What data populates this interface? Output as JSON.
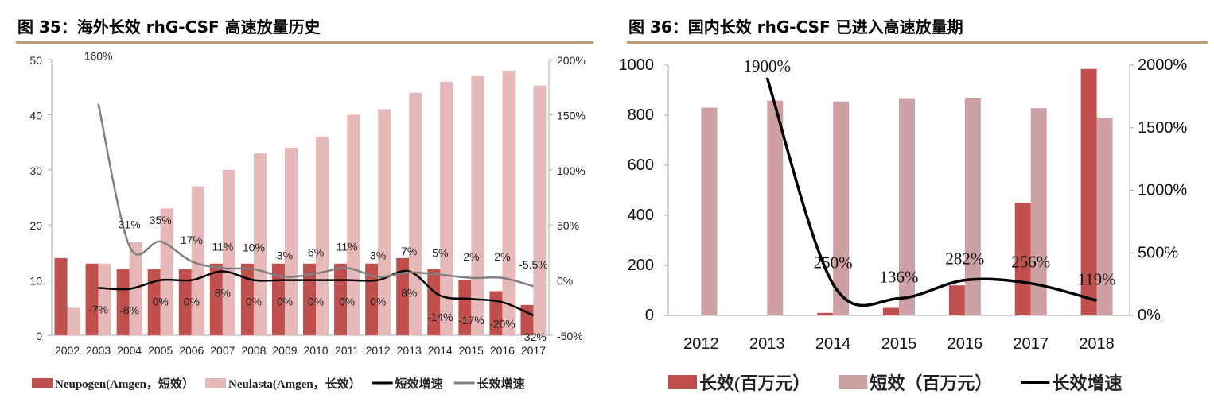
{
  "chart_data": [
    {
      "type": "bar",
      "title": "图 35：海外长效 rhG-CSF 高速放量历史",
      "categories": [
        "2002",
        "2003",
        "2004",
        "2005",
        "2006",
        "2007",
        "2008",
        "2009",
        "2010",
        "2011",
        "2012",
        "2013",
        "2014",
        "2015",
        "2016",
        "2017"
      ],
      "ylim": [
        0,
        50
      ],
      "yticks": [
        "0",
        "10",
        "20",
        "30",
        "40",
        "50"
      ],
      "y2lim": [
        -50,
        200
      ],
      "y2ticks": [
        "-50%",
        "0%",
        "50%",
        "100%",
        "150%",
        "200%"
      ],
      "legend_position": "bottom",
      "series": [
        {
          "name": "Neupogen(Amgen，短效）",
          "kind": "bar",
          "axis": "left",
          "color": "#c0504d",
          "values": [
            14,
            13,
            12,
            12,
            12,
            13,
            13,
            13,
            13,
            13,
            13,
            14,
            12,
            10,
            8,
            5.5
          ]
        },
        {
          "name": "Neulasta(Amgen，长效）",
          "kind": "bar",
          "axis": "left",
          "color": "#e6b9b8",
          "values": [
            5,
            13,
            17,
            23,
            27,
            30,
            33,
            34,
            36,
            40,
            41,
            44,
            46,
            47,
            48,
            45.3
          ]
        },
        {
          "name": "短效增速",
          "kind": "line",
          "axis": "right",
          "color": "#000000",
          "values": [
            null,
            -7,
            -8,
            0,
            0,
            8,
            0,
            0,
            0,
            0,
            0,
            8,
            -14,
            -17,
            -20,
            -32
          ],
          "labels": [
            "",
            "-7%",
            "-8%",
            "0%",
            "0%",
            "8%",
            "0%",
            "0%",
            "0%",
            "0%",
            "0%",
            "8%",
            "-14%",
            "-17%",
            "-20%",
            "-32%"
          ]
        },
        {
          "name": "长效增速",
          "kind": "line",
          "axis": "right",
          "color": "#808080",
          "values": [
            null,
            160,
            31,
            35,
            17,
            11,
            10,
            3,
            6,
            11,
            3,
            7,
            5,
            2,
            2,
            -5.5
          ],
          "labels": [
            "",
            "160%",
            "31%",
            "35%",
            "17%",
            "11%",
            "10%",
            "3%",
            "6%",
            "11%",
            "3%",
            "7%",
            "5%",
            "2%",
            "2%",
            "-5.5%"
          ]
        }
      ]
    },
    {
      "type": "bar",
      "title": "图 36：国内长效 rhG-CSF 已进入高速放量期",
      "categories": [
        "2012",
        "2013",
        "2014",
        "2015",
        "2016",
        "2017",
        "2018"
      ],
      "ylim": [
        0,
        1000
      ],
      "yticks": [
        "0",
        "200",
        "400",
        "600",
        "800",
        "1000"
      ],
      "y2lim": [
        0,
        2000
      ],
      "y2ticks": [
        "0%",
        "500%",
        "1000%",
        "1500%",
        "2000%"
      ],
      "legend_position": "bottom",
      "series": [
        {
          "name": "长效(百万元）",
          "kind": "bar",
          "axis": "left",
          "color": "#c0504d",
          "values": [
            0,
            0,
            10,
            30,
            120,
            450,
            985
          ]
        },
        {
          "name": "短效（百万元）",
          "kind": "bar",
          "axis": "left",
          "color": "#cda0a4",
          "values": [
            830,
            858,
            855,
            868,
            870,
            828,
            790
          ]
        },
        {
          "name": "长效增速",
          "kind": "line",
          "axis": "right",
          "color": "#000000",
          "values": [
            null,
            1900,
            250,
            136,
            282,
            256,
            119
          ],
          "labels": [
            "",
            "1900%",
            "250%",
            "136%",
            "282%",
            "256%",
            "119%"
          ]
        }
      ]
    }
  ]
}
